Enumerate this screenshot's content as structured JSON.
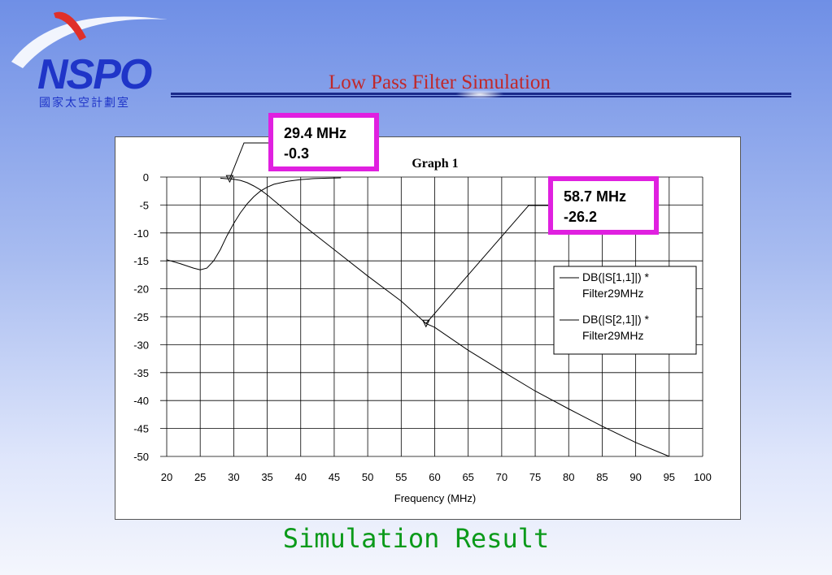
{
  "logo": {
    "name": "NSPO",
    "subtitle": "國家太空計劃室",
    "colors": {
      "blue": "#1f35c8",
      "red": "#e0302a"
    }
  },
  "slide": {
    "title": "Low Pass Filter Simulation",
    "caption": "Simulation Result",
    "title_color": "#c0282a",
    "caption_color": "#0b9a1a"
  },
  "chart_data": {
    "type": "line",
    "title": "Graph 1",
    "xlabel": "Frequency (MHz)",
    "ylabel": "",
    "xlim": [
      20,
      100
    ],
    "ylim": [
      -50,
      0
    ],
    "xticks": [
      20,
      25,
      30,
      35,
      40,
      45,
      50,
      55,
      60,
      65,
      70,
      75,
      80,
      85,
      90,
      95,
      100
    ],
    "yticks": [
      0,
      -5,
      -10,
      -15,
      -20,
      -25,
      -30,
      -35,
      -40,
      -45,
      -50
    ],
    "grid": true,
    "legend": {
      "placement": "right",
      "entries": [
        "DB(|S[1,1]|) * Filter29MHz",
        "DB(|S[2,1]|) * Filter29MHz"
      ]
    },
    "series": [
      {
        "name": "DB(|S[1,1]|) * Filter29MHz",
        "color": "#000000",
        "x": [
          20,
          22,
          24,
          25,
          26,
          27,
          28,
          29,
          30,
          31,
          32,
          33,
          34,
          35,
          36,
          38,
          40,
          42,
          44,
          46
        ],
        "y": [
          -14.8,
          -15.5,
          -16.3,
          -16.6,
          -16.3,
          -15.0,
          -13.0,
          -10.5,
          -8.3,
          -6.4,
          -4.8,
          -3.5,
          -2.5,
          -1.8,
          -1.3,
          -0.75,
          -0.45,
          -0.28,
          -0.2,
          -0.15
        ]
      },
      {
        "name": "DB(|S[2,1]|) * Filter29MHz",
        "color": "#000000",
        "x": [
          28,
          29,
          29.4,
          30,
          31,
          32,
          33,
          34,
          35,
          37,
          40,
          45,
          50,
          55,
          58.7,
          60,
          65,
          70,
          75,
          80,
          85,
          90,
          95
        ],
        "y": [
          -0.2,
          -0.3,
          -0.3,
          -0.4,
          -0.6,
          -1.0,
          -1.6,
          -2.3,
          -3.2,
          -5.2,
          -8.3,
          -13.0,
          -17.7,
          -22.2,
          -26.2,
          -26.9,
          -31.0,
          -34.7,
          -38.3,
          -41.5,
          -44.6,
          -47.5,
          -50.0
        ]
      }
    ],
    "markers": [
      {
        "x": 29.4,
        "y": -0.3,
        "label_freq": "29.4 MHz",
        "label_val": "-0.3",
        "highlight": "#e020e0"
      },
      {
        "x": 58.7,
        "y": -26.2,
        "label_freq": "58.7 MHz",
        "label_val": "-26.2",
        "highlight": "#e020e0"
      }
    ]
  }
}
